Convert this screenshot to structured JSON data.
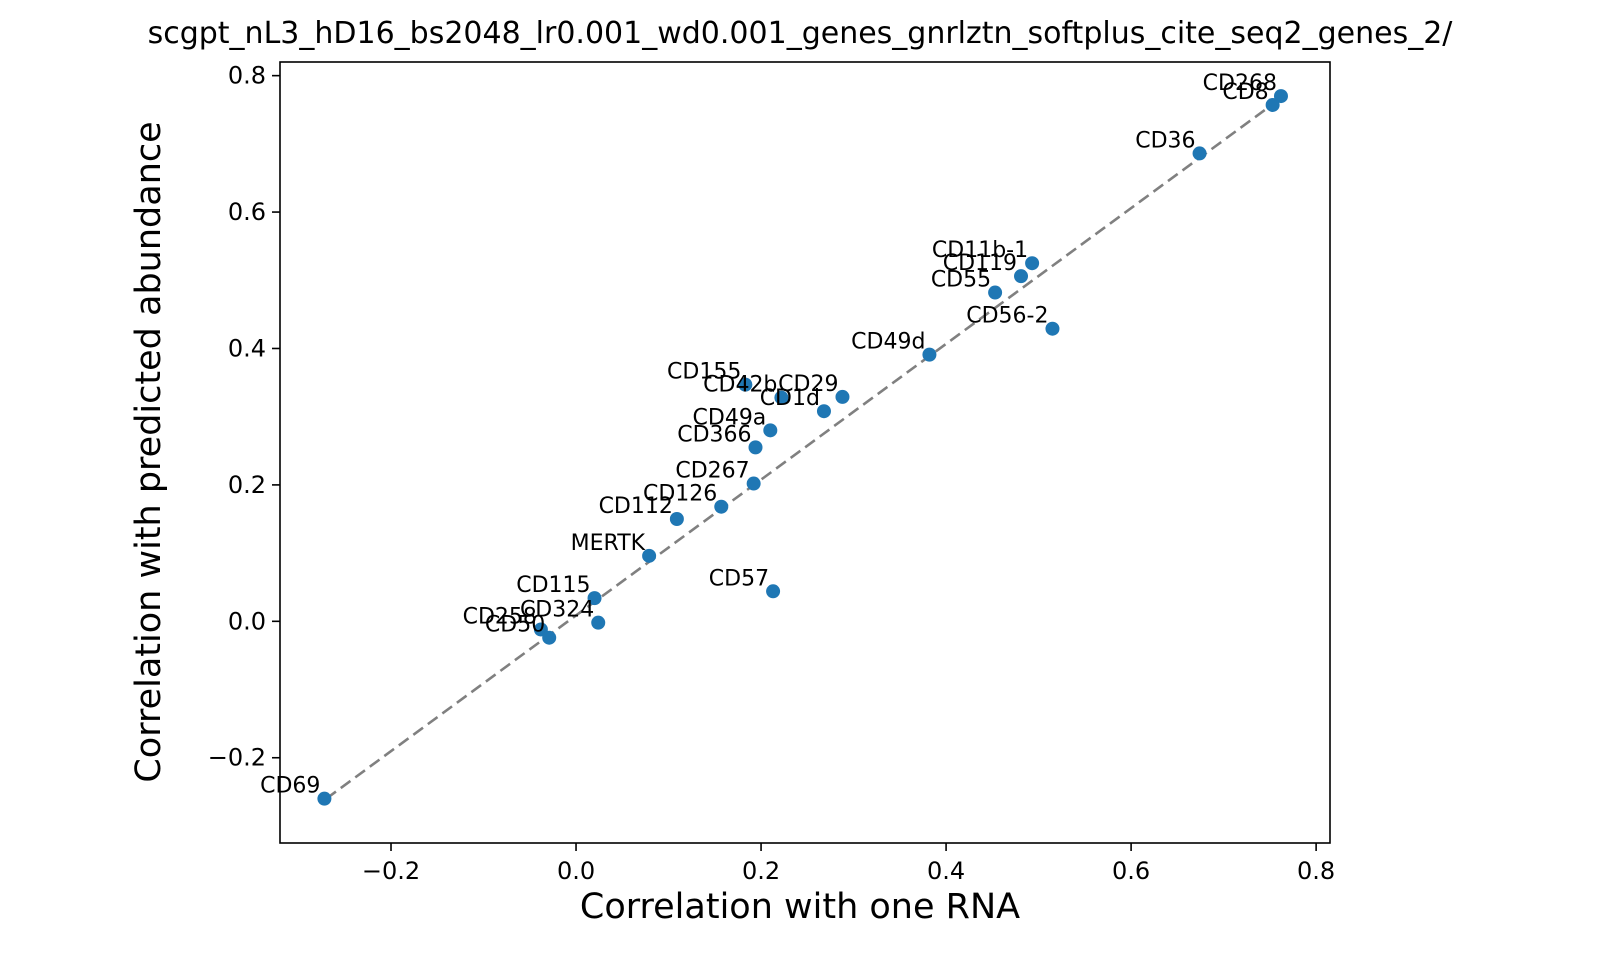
{
  "chart_data": {
    "type": "scatter",
    "title": "scgpt_nL3_hD16_bs2048_lr0.001_wd0.001_genes_gnrlztn_softplus_cite_seq2_genes_2/",
    "xlabel": "Correlation with one RNA",
    "ylabel": "Correlation with predicted abundance",
    "xlim": [
      -0.32,
      0.815
    ],
    "ylim": [
      -0.325,
      0.82
    ],
    "xticks": [
      -0.2,
      0.0,
      0.2,
      0.4,
      0.6,
      0.8
    ],
    "xtick_labels": [
      "−0.2",
      "0.0",
      "0.2",
      "0.4",
      "0.6",
      "0.8"
    ],
    "yticks": [
      -0.2,
      0.0,
      0.2,
      0.4,
      0.6,
      0.8
    ],
    "ytick_labels": [
      "−0.2",
      "0.0",
      "0.2",
      "0.4",
      "0.6",
      "0.8"
    ],
    "grid": false,
    "point_color": "#1f77b4",
    "reference_line": {
      "style": "dashed",
      "color": "#808080",
      "from": [
        -0.27,
        -0.26
      ],
      "to": [
        0.76,
        0.765
      ]
    },
    "points": [
      {
        "label": "CD268",
        "x": 0.762,
        "y": 0.77
      },
      {
        "label": "CD8",
        "x": 0.753,
        "y": 0.757
      },
      {
        "label": "CD36",
        "x": 0.674,
        "y": 0.686
      },
      {
        "label": "CD11b-1",
        "x": 0.493,
        "y": 0.525
      },
      {
        "label": "CD119",
        "x": 0.481,
        "y": 0.506
      },
      {
        "label": "CD55",
        "x": 0.453,
        "y": 0.482
      },
      {
        "label": "CD56-2",
        "x": 0.515,
        "y": 0.429
      },
      {
        "label": "CD49d",
        "x": 0.382,
        "y": 0.391
      },
      {
        "label": "CD155",
        "x": 0.183,
        "y": 0.347
      },
      {
        "label": "CD42b",
        "x": 0.222,
        "y": 0.328
      },
      {
        "label": "CD29",
        "x": 0.288,
        "y": 0.329
      },
      {
        "label": "CD1d",
        "x": 0.268,
        "y": 0.308
      },
      {
        "label": "CD49a",
        "x": 0.21,
        "y": 0.28
      },
      {
        "label": "CD366",
        "x": 0.194,
        "y": 0.255
      },
      {
        "label": "CD267",
        "x": 0.192,
        "y": 0.202
      },
      {
        "label": "CD126",
        "x": 0.157,
        "y": 0.168
      },
      {
        "label": "CD112",
        "x": 0.109,
        "y": 0.15
      },
      {
        "label": "MERTK",
        "x": 0.079,
        "y": 0.096
      },
      {
        "label": "CD57",
        "x": 0.213,
        "y": 0.044
      },
      {
        "label": "CD115",
        "x": 0.02,
        "y": 0.034
      },
      {
        "label": "CD324",
        "x": 0.024,
        "y": -0.002
      },
      {
        "label": "CD258",
        "x": -0.038,
        "y": -0.012
      },
      {
        "label": "CD50",
        "x": -0.029,
        "y": -0.024
      },
      {
        "label": "CD69",
        "x": -0.272,
        "y": -0.26
      }
    ]
  }
}
